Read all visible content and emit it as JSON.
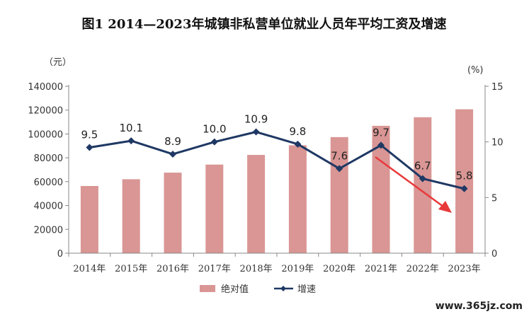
{
  "chart_data": {
    "type": "bar",
    "title": "图1  2014—2023年城镇非私营单位就业人员年平均工资及增速",
    "categories": [
      "2014年",
      "2015年",
      "2016年",
      "2017年",
      "2018年",
      "2019年",
      "2020年",
      "2021年",
      "2022年",
      "2023年"
    ],
    "left_unit": "（元）",
    "right_unit": "(%)",
    "left_axis": {
      "min": 0,
      "max": 140000,
      "ticks": [
        0,
        20000,
        40000,
        60000,
        80000,
        100000,
        120000,
        140000
      ]
    },
    "right_axis": {
      "min": 0,
      "max": 15,
      "ticks": [
        0,
        5,
        10,
        15
      ]
    },
    "series": [
      {
        "name": "绝对值",
        "type": "bar",
        "axis": "left",
        "color": "#d99694",
        "values": [
          56360,
          62029,
          67569,
          74318,
          82413,
          90501,
          97379,
          106837,
          114029,
          120698
        ]
      },
      {
        "name": "增速",
        "type": "line",
        "axis": "right",
        "color": "#1f3864",
        "values": [
          9.5,
          10.1,
          8.9,
          10.0,
          10.9,
          9.8,
          7.6,
          9.7,
          6.7,
          5.8
        ],
        "labels": [
          "9.5",
          "10.1",
          "8.9",
          "10.0",
          "10.9",
          "9.8",
          "7.6",
          "9.7",
          "6.7",
          "5.8"
        ]
      }
    ],
    "grid": false,
    "legend": "bottom",
    "annotation": "red-arrow-down-trend"
  },
  "colors": {
    "arrow": "#e8393b",
    "axis": "#888888"
  },
  "watermark": "www.365jz.com"
}
